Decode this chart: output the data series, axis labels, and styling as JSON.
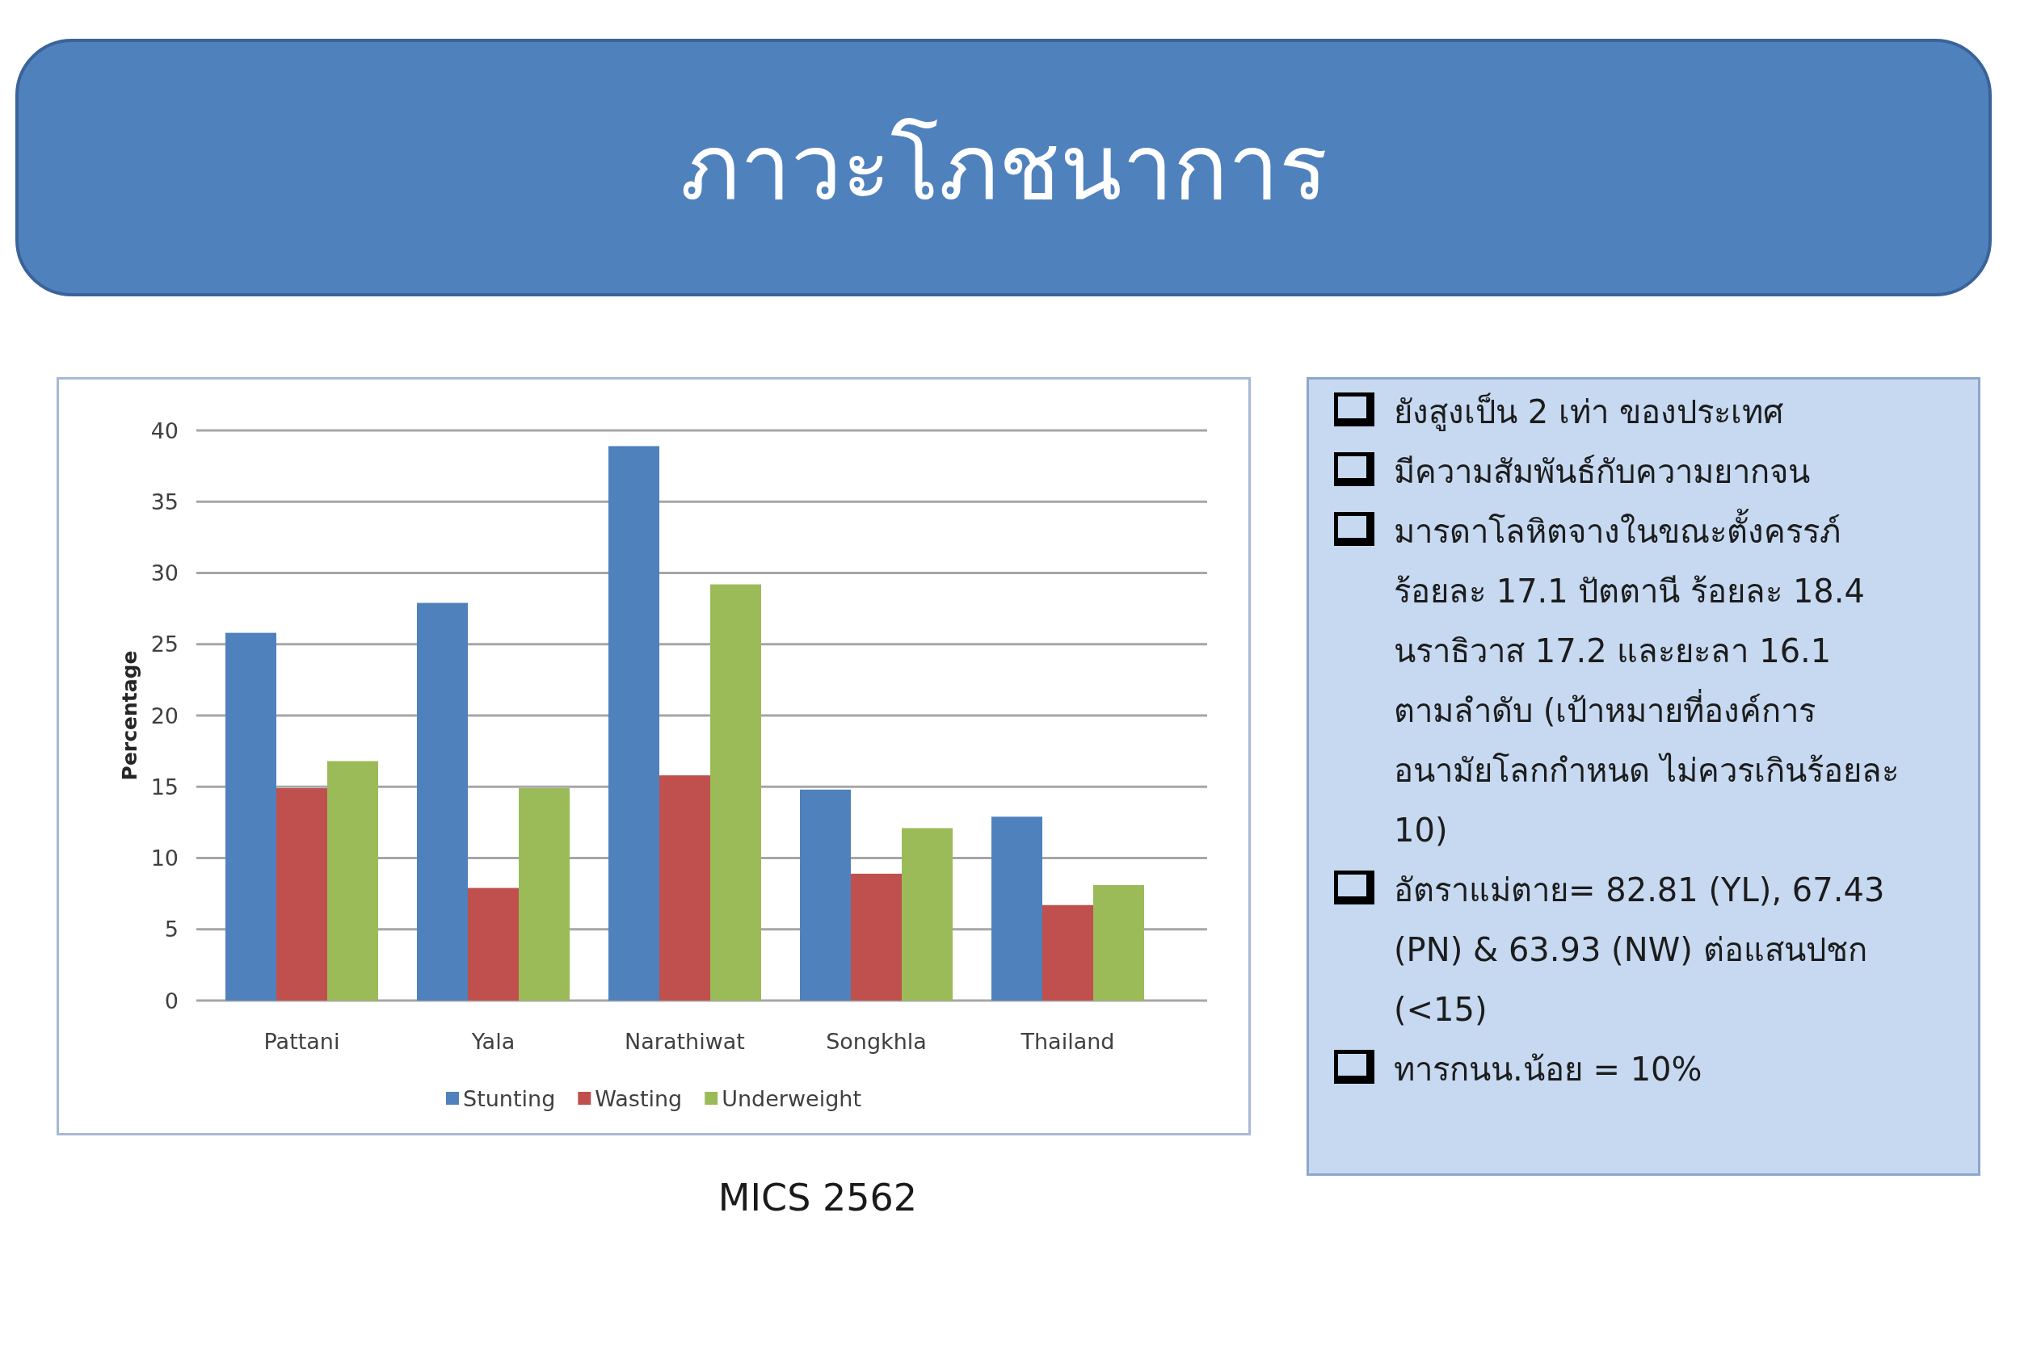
{
  "chart_data": [
    {
      "type": "bar",
      "title": "ภาวะโภชนาการ",
      "categories": [
        "Pattani",
        "Yala",
        "Narathiwat",
        "Songkhla",
        "Thailand"
      ],
      "series": [
        {
          "name": "Stunting",
          "color": "#4f81bd",
          "values": [
            25.8,
            27.9,
            38.9,
            14.8,
            12.9
          ]
        },
        {
          "name": "Wasting",
          "color": "#c0504d",
          "values": [
            14.9,
            7.9,
            15.8,
            8.9,
            6.7
          ]
        },
        {
          "name": "Underweight",
          "color": "#9bbb59",
          "values": [
            16.8,
            14.9,
            29.2,
            12.1,
            8.1
          ]
        }
      ],
      "ylabel": "Percentage",
      "ylim": [
        0,
        40
      ],
      "yticks": [
        0,
        5,
        10,
        15,
        20,
        25,
        30,
        35,
        40
      ],
      "grid": "y",
      "legend": "bottom",
      "annotations": [
        "MICS 2562"
      ]
    },
    {
      "type": "other",
      "annotations": [
        "ยังสูงเป็น 2 เท่า ของประเทศ",
        "มีความสัมพันธ์กับความยากจน",
        "มารดาโลหิตจางในขณะตั้งครรภ์\nร้อยละ 17.1 ปัตตานี ร้อยละ 18.4\nนราธิวาส 17.2 และยะลา 16.1\nตามลำดับ (เป้าหมายที่องค์การ\nอนามัยโลกกำหนด ไม่ควรเกินร้อยละ\n10)",
        "อัตราแม่ตาย= 82.81 (YL), 67.43\n(PN) & 63.93 (NW) ต่อแสนปชก\n(<15)",
        "ทารกนน.น้อย = 10%"
      ]
    }
  ]
}
